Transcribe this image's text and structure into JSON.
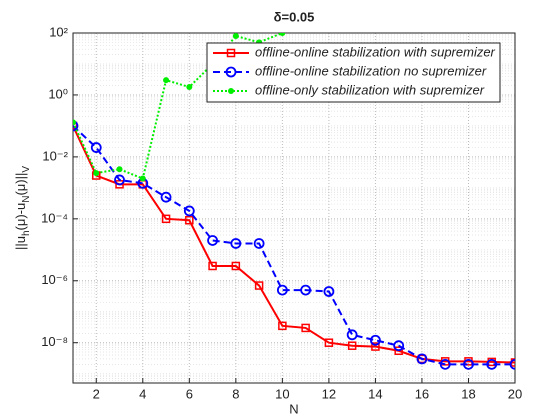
{
  "chart_data": {
    "type": "line",
    "title": "δ=0.05",
    "xlabel": "N",
    "ylabel": [
      "||u",
      "h",
      "(μ)-u",
      "N",
      "(μ)||",
      "V"
    ],
    "x": [
      1,
      2,
      3,
      4,
      5,
      6,
      7,
      8,
      9,
      10,
      11,
      12,
      13,
      14,
      15,
      16,
      17,
      18,
      19,
      20
    ],
    "series": [
      {
        "name": "offline-online stabilization with supremizer",
        "color": "#ff0000",
        "linestyle": "solid",
        "marker": "square",
        "values": [
          0.1,
          0.0025,
          0.0013,
          0.0013,
          0.0001,
          9e-05,
          3e-06,
          3e-06,
          7e-07,
          3.5e-08,
          3e-08,
          1e-08,
          8e-09,
          7.5e-09,
          5.5e-09,
          3e-09,
          2.5e-09,
          2.5e-09,
          2.4e-09,
          2.3e-09
        ]
      },
      {
        "name": "offline-online stabilization no supremizer",
        "color": "#0000ff",
        "linestyle": "dashed",
        "marker": "circle",
        "values": [
          0.1,
          0.02,
          0.0018,
          0.0014,
          0.0005,
          0.00018,
          2e-05,
          1.6e-05,
          1.6e-05,
          5e-07,
          5e-07,
          4.5e-07,
          1.8e-08,
          1.2e-08,
          8e-09,
          3e-09,
          2e-09,
          2e-09,
          2e-09,
          2e-09
        ]
      },
      {
        "name": "offline-only stabilization with supremizer",
        "color": "#00ee00",
        "linestyle": "dotted",
        "marker": "dot",
        "values": [
          0.13,
          0.003,
          0.004,
          0.002,
          3,
          1.8,
          10,
          80,
          50,
          100,
          null,
          null,
          null,
          null,
          null,
          null,
          null,
          null,
          null,
          null
        ]
      }
    ],
    "xlim": [
      1,
      20
    ],
    "xticks": [
      2,
      4,
      6,
      8,
      10,
      12,
      14,
      16,
      18,
      20
    ],
    "ylim": [
      5e-10,
      100
    ],
    "ylog": true,
    "yticks": [
      {
        "value": 1e-08,
        "label": "10⁻⁸"
      },
      {
        "value": 1e-06,
        "label": "10⁻⁶"
      },
      {
        "value": 0.0001,
        "label": "10⁻⁴"
      },
      {
        "value": 0.01,
        "label": "10⁻²"
      },
      {
        "value": 1,
        "label": "10⁰"
      },
      {
        "value": 100,
        "label": "10²"
      }
    ],
    "grid": true,
    "legend": "top-right"
  }
}
